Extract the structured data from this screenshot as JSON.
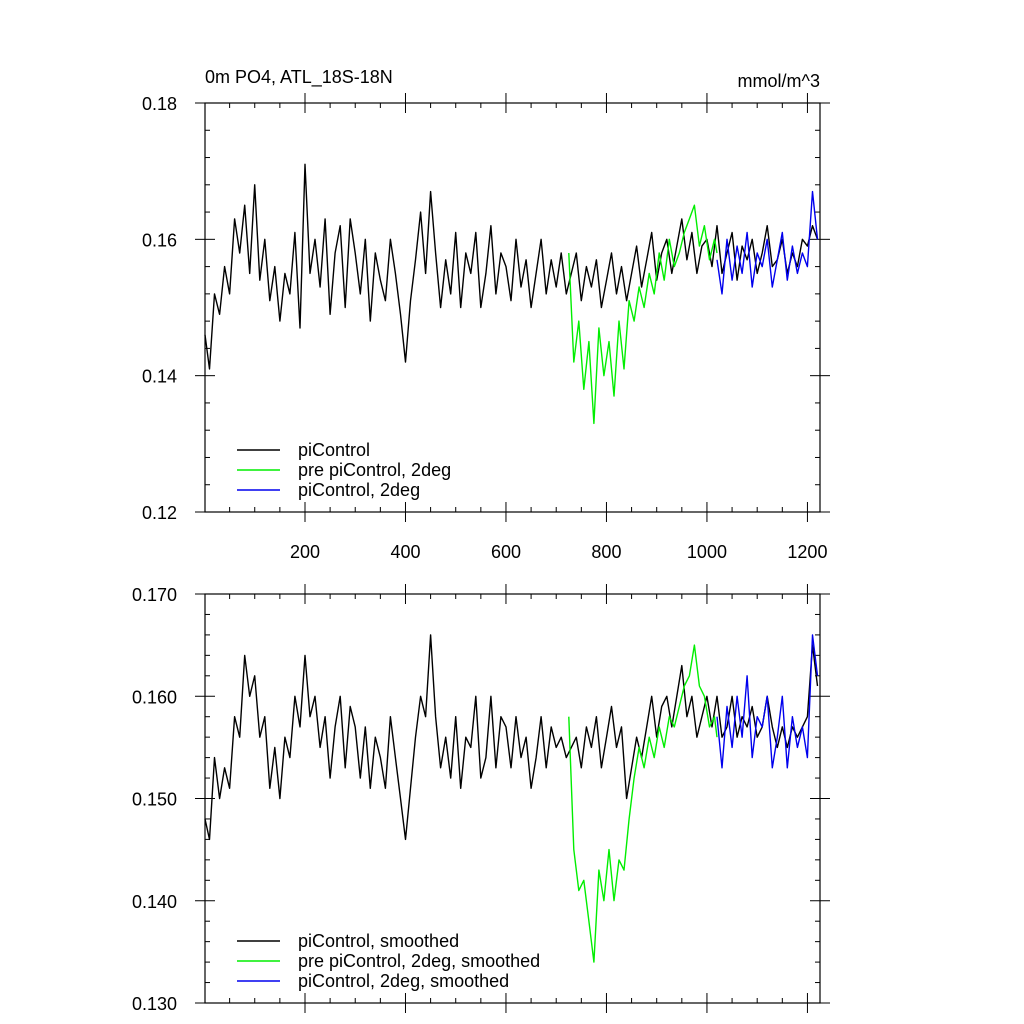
{
  "figure": {
    "title_left": "0m PO4, ATL_18S-18N",
    "title_right": "mmol/m^3"
  },
  "chart_data": [
    {
      "type": "line",
      "title": "0m PO4, ATL_18S-18N",
      "units": "mmol/m^3",
      "xlim": [
        1,
        1225
      ],
      "ylim": [
        0.12,
        0.18
      ],
      "x_ticks": [
        200,
        400,
        600,
        800,
        1000,
        1200
      ],
      "x_tick_labels": [
        "200",
        "400",
        "600",
        "800",
        "1000",
        "1200"
      ],
      "y_ticks": [
        0.12,
        0.14,
        0.16,
        0.18
      ],
      "y_tick_labels": [
        "0.12",
        "0.14",
        "0.16",
        "0.18"
      ],
      "legend_position": "bottom-left",
      "series": [
        {
          "name": "piControl",
          "color": "#000000",
          "x": [
            1,
            10,
            20,
            30,
            40,
            50,
            60,
            70,
            80,
            90,
            100,
            110,
            120,
            130,
            140,
            150,
            160,
            170,
            180,
            190,
            200,
            210,
            220,
            230,
            240,
            250,
            260,
            270,
            280,
            290,
            300,
            310,
            320,
            330,
            340,
            350,
            360,
            370,
            380,
            390,
            400,
            410,
            420,
            430,
            440,
            450,
            460,
            470,
            480,
            490,
            500,
            510,
            520,
            530,
            540,
            550,
            560,
            570,
            580,
            590,
            600,
            610,
            620,
            630,
            640,
            650,
            660,
            670,
            680,
            690,
            700,
            710,
            720,
            730,
            740,
            750,
            760,
            770,
            780,
            790,
            800,
            810,
            820,
            830,
            840,
            850,
            860,
            870,
            880,
            890,
            900,
            910,
            920,
            930,
            940,
            950,
            960,
            970,
            980,
            990,
            1000,
            1010,
            1020,
            1030,
            1040,
            1050,
            1060,
            1070,
            1080,
            1090,
            1100,
            1110,
            1120,
            1130,
            1140,
            1150,
            1160,
            1170,
            1180,
            1190,
            1200,
            1210,
            1220
          ],
          "y": [
            0.146,
            0.141,
            0.152,
            0.149,
            0.156,
            0.152,
            0.163,
            0.158,
            0.165,
            0.155,
            0.168,
            0.154,
            0.16,
            0.151,
            0.156,
            0.148,
            0.155,
            0.152,
            0.161,
            0.147,
            0.171,
            0.155,
            0.16,
            0.153,
            0.163,
            0.149,
            0.158,
            0.162,
            0.15,
            0.163,
            0.158,
            0.152,
            0.16,
            0.148,
            0.158,
            0.154,
            0.151,
            0.16,
            0.155,
            0.149,
            0.142,
            0.151,
            0.157,
            0.164,
            0.155,
            0.167,
            0.158,
            0.15,
            0.157,
            0.152,
            0.161,
            0.15,
            0.158,
            0.155,
            0.161,
            0.15,
            0.155,
            0.162,
            0.152,
            0.158,
            0.156,
            0.151,
            0.16,
            0.153,
            0.157,
            0.15,
            0.155,
            0.16,
            0.152,
            0.157,
            0.153,
            0.158,
            0.152,
            0.155,
            0.158,
            0.151,
            0.156,
            0.153,
            0.157,
            0.15,
            0.154,
            0.158,
            0.152,
            0.156,
            0.151,
            0.155,
            0.159,
            0.153,
            0.157,
            0.161,
            0.154,
            0.158,
            0.16,
            0.155,
            0.159,
            0.163,
            0.157,
            0.161,
            0.155,
            0.159,
            0.16,
            0.156,
            0.162,
            0.155,
            0.158,
            0.161,
            0.154,
            0.159,
            0.157,
            0.16,
            0.155,
            0.158,
            0.162,
            0.156,
            0.157,
            0.16,
            0.155,
            0.158,
            0.156,
            0.16,
            0.159,
            0.162,
            0.16
          ]
        },
        {
          "name": "pre piControl, 2deg",
          "color": "#00ee00",
          "x": [
            725,
            735,
            745,
            755,
            765,
            775,
            785,
            795,
            805,
            815,
            825,
            835,
            845,
            855,
            865,
            875,
            885,
            895,
            905,
            915,
            925,
            935,
            945,
            955,
            965,
            975,
            985,
            995,
            1005,
            1015,
            1020
          ],
          "y": [
            0.158,
            0.142,
            0.148,
            0.138,
            0.145,
            0.133,
            0.147,
            0.14,
            0.145,
            0.137,
            0.148,
            0.141,
            0.151,
            0.148,
            0.153,
            0.15,
            0.155,
            0.152,
            0.158,
            0.154,
            0.16,
            0.156,
            0.158,
            0.161,
            0.163,
            0.165,
            0.159,
            0.162,
            0.157,
            0.16,
            0.158
          ]
        },
        {
          "name": "piControl, 2deg",
          "color": "#0000ee",
          "x": [
            1020,
            1030,
            1040,
            1050,
            1060,
            1070,
            1080,
            1090,
            1100,
            1110,
            1120,
            1130,
            1140,
            1150,
            1160,
            1170,
            1180,
            1190,
            1200,
            1210,
            1220
          ],
          "y": [
            0.157,
            0.152,
            0.16,
            0.154,
            0.159,
            0.155,
            0.161,
            0.153,
            0.158,
            0.156,
            0.16,
            0.153,
            0.157,
            0.161,
            0.154,
            0.159,
            0.155,
            0.158,
            0.156,
            0.167,
            0.16
          ]
        }
      ]
    },
    {
      "type": "line",
      "xlim": [
        1,
        1225
      ],
      "ylim": [
        0.13,
        0.17
      ],
      "y_ticks": [
        0.13,
        0.14,
        0.15,
        0.16,
        0.17
      ],
      "y_tick_labels": [
        "0.130",
        "0.140",
        "0.150",
        "0.160",
        "0.170"
      ],
      "legend_position": "bottom-left",
      "series": [
        {
          "name": "piControl, smoothed",
          "color": "#000000",
          "x": [
            1,
            10,
            20,
            30,
            40,
            50,
            60,
            70,
            80,
            90,
            100,
            110,
            120,
            130,
            140,
            150,
            160,
            170,
            180,
            190,
            200,
            210,
            220,
            230,
            240,
            250,
            260,
            270,
            280,
            290,
            300,
            310,
            320,
            330,
            340,
            350,
            360,
            370,
            380,
            390,
            400,
            410,
            420,
            430,
            440,
            450,
            460,
            470,
            480,
            490,
            500,
            510,
            520,
            530,
            540,
            550,
            560,
            570,
            580,
            590,
            600,
            610,
            620,
            630,
            640,
            650,
            660,
            670,
            680,
            690,
            700,
            710,
            720,
            730,
            740,
            750,
            760,
            770,
            780,
            790,
            800,
            810,
            820,
            830,
            840,
            850,
            860,
            870,
            880,
            890,
            900,
            910,
            920,
            930,
            940,
            950,
            960,
            970,
            980,
            990,
            1000,
            1010,
            1020,
            1030,
            1040,
            1050,
            1060,
            1070,
            1080,
            1090,
            1100,
            1110,
            1120,
            1130,
            1140,
            1150,
            1160,
            1170,
            1180,
            1190,
            1200,
            1210,
            1220
          ],
          "y": [
            0.148,
            0.146,
            0.154,
            0.15,
            0.153,
            0.151,
            0.158,
            0.156,
            0.164,
            0.16,
            0.162,
            0.156,
            0.158,
            0.151,
            0.155,
            0.15,
            0.156,
            0.154,
            0.16,
            0.157,
            0.164,
            0.158,
            0.16,
            0.155,
            0.158,
            0.152,
            0.157,
            0.16,
            0.153,
            0.159,
            0.157,
            0.152,
            0.157,
            0.151,
            0.156,
            0.154,
            0.151,
            0.158,
            0.154,
            0.15,
            0.146,
            0.151,
            0.156,
            0.16,
            0.158,
            0.166,
            0.158,
            0.153,
            0.156,
            0.152,
            0.158,
            0.151,
            0.156,
            0.155,
            0.16,
            0.152,
            0.154,
            0.16,
            0.153,
            0.158,
            0.157,
            0.153,
            0.158,
            0.154,
            0.156,
            0.151,
            0.154,
            0.158,
            0.153,
            0.157,
            0.155,
            0.156,
            0.154,
            0.155,
            0.156,
            0.153,
            0.157,
            0.155,
            0.158,
            0.153,
            0.156,
            0.159,
            0.155,
            0.157,
            0.15,
            0.153,
            0.156,
            0.154,
            0.157,
            0.16,
            0.156,
            0.159,
            0.16,
            0.157,
            0.16,
            0.163,
            0.158,
            0.16,
            0.156,
            0.158,
            0.16,
            0.157,
            0.16,
            0.156,
            0.157,
            0.16,
            0.156,
            0.158,
            0.157,
            0.159,
            0.156,
            0.157,
            0.16,
            0.157,
            0.155,
            0.157,
            0.155,
            0.157,
            0.156,
            0.157,
            0.158,
            0.165,
            0.161
          ]
        },
        {
          "name": "pre piControl, 2deg, smoothed",
          "color": "#00ee00",
          "x": [
            725,
            735,
            745,
            755,
            765,
            775,
            785,
            795,
            805,
            815,
            825,
            835,
            845,
            855,
            865,
            875,
            885,
            895,
            905,
            915,
            925,
            935,
            945,
            955,
            965,
            975,
            985,
            995,
            1005,
            1015,
            1020
          ],
          "y": [
            0.158,
            0.145,
            0.141,
            0.142,
            0.138,
            0.134,
            0.143,
            0.14,
            0.145,
            0.14,
            0.144,
            0.143,
            0.148,
            0.152,
            0.155,
            0.153,
            0.156,
            0.154,
            0.157,
            0.155,
            0.158,
            0.157,
            0.159,
            0.161,
            0.162,
            0.165,
            0.161,
            0.16,
            0.157,
            0.158,
            0.156
          ]
        },
        {
          "name": "piControl, 2deg, smoothed",
          "color": "#0000ee",
          "x": [
            1020,
            1030,
            1040,
            1050,
            1060,
            1070,
            1080,
            1090,
            1100,
            1110,
            1120,
            1130,
            1140,
            1150,
            1160,
            1170,
            1180,
            1190,
            1200,
            1210,
            1220
          ],
          "y": [
            0.158,
            0.153,
            0.159,
            0.155,
            0.16,
            0.156,
            0.162,
            0.154,
            0.158,
            0.157,
            0.16,
            0.153,
            0.156,
            0.16,
            0.153,
            0.158,
            0.155,
            0.157,
            0.154,
            0.166,
            0.162
          ]
        }
      ]
    }
  ]
}
